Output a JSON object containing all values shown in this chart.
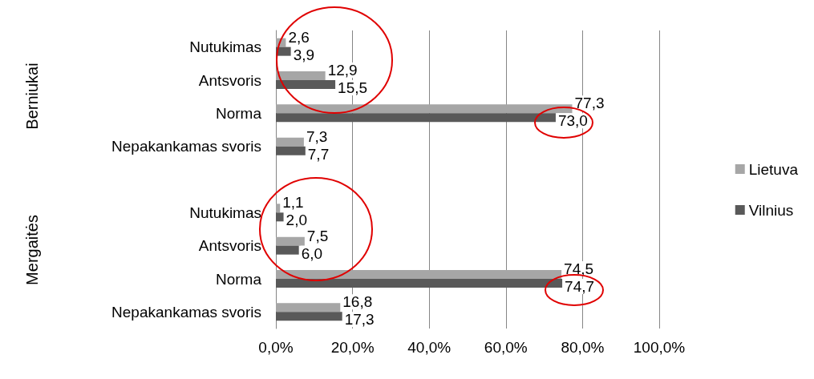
{
  "chart_data": {
    "type": "bar",
    "orientation": "horizontal",
    "categories": [
      "Nutukimas",
      "Antsvoris",
      "Norma",
      "Nepakankamas svoris",
      null,
      "Nutukimas",
      "Antsvoris",
      "Norma",
      "Nepakankamas svoris"
    ],
    "series": [
      {
        "name": "Lietuva",
        "color": "#a6a6a6",
        "values": [
          2.6,
          12.9,
          77.3,
          7.3,
          null,
          1.1,
          7.5,
          74.5,
          16.8
        ],
        "value_labels": [
          "2,6",
          "12,9",
          "77,3",
          "7,3",
          null,
          "1,1",
          "7,5",
          "74,5",
          "16,8"
        ]
      },
      {
        "name": "Vilnius",
        "color": "#595959",
        "values": [
          3.9,
          15.5,
          73.0,
          7.7,
          null,
          2.0,
          6.0,
          74.7,
          17.3
        ],
        "value_labels": [
          "3,9",
          "15,5",
          "73,0",
          "7,7",
          null,
          "2,0",
          "6,0",
          "74,7",
          "17,3"
        ]
      }
    ],
    "xlim": [
      0,
      100
    ],
    "xticks": [
      {
        "value": 0,
        "label": "0,0%"
      },
      {
        "value": 20,
        "label": "20,0%"
      },
      {
        "value": 40,
        "label": "40,0%"
      },
      {
        "value": 60,
        "label": "60,0%"
      },
      {
        "value": 80,
        "label": "80,0%"
      },
      {
        "value": 100,
        "label": "100,0%"
      }
    ],
    "grid": "x",
    "legend": "right",
    "annotations": [
      "Berniukai",
      "Mergaitės"
    ]
  }
}
